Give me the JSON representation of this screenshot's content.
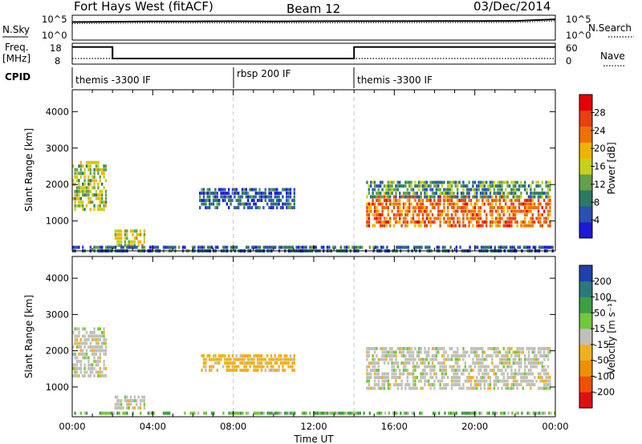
{
  "header": {
    "station": "Fort Hays West (fitACF)",
    "beam": "Beam 12",
    "date": "03/Dec/2014"
  },
  "top_panels": {
    "nsky_label": "N.Sky",
    "nsearch_label": "N.Search",
    "freq_label": "Freq.",
    "freq_unit": "[MHz]",
    "nave_label": "Nave",
    "cpid_label": "CPID",
    "nsky_ticks": [
      "10^5",
      "10^0"
    ],
    "nsearch_ticks": [
      "10^5",
      "10^0"
    ],
    "freq_ticks": [
      "18",
      "8"
    ],
    "nave_ticks": [
      "60",
      "0"
    ]
  },
  "cpid_segments": [
    {
      "label": "themis -3300 IF",
      "start": 0.0
    },
    {
      "label": "rbsp 200 IF",
      "start": 8.0
    },
    {
      "label": "themis -3300 IF",
      "start": 14.0
    }
  ],
  "time_axis": {
    "label": "Time UT",
    "ticks": [
      "00:00",
      "04:00",
      "08:00",
      "12:00",
      "16:00",
      "20:00",
      "00:00"
    ],
    "range_hours": [
      0,
      24
    ]
  },
  "power_colorbar": {
    "label": "Power [dB]",
    "ticks": [
      "28",
      "24",
      "20",
      "16",
      "12",
      "8",
      "4"
    ],
    "colors": [
      "#1a1ad6",
      "#2a50b4",
      "#2a7a64",
      "#62a04a",
      "#c8d018",
      "#f0b400",
      "#f07000",
      "#e84010",
      "#e80000"
    ]
  },
  "velocity_colorbar": {
    "label": "Velocity [m s⁻¹]",
    "ticks": [
      "200",
      "100",
      "50",
      "15",
      "-15",
      "-50",
      "-100",
      "-200"
    ],
    "colors": [
      "#2040b0",
      "#2a7a7a",
      "#3aa040",
      "#70c83a",
      "#c0c0b8",
      "#f0b020",
      "#f09000",
      "#f05000",
      "#e01010"
    ]
  },
  "chart_data": [
    {
      "type": "line",
      "title": "N.Sky / N.Search",
      "x": [
        0,
        2,
        4,
        6,
        8,
        10,
        12,
        14,
        16,
        18,
        20,
        22,
        24
      ],
      "series": [
        {
          "name": "N.Sky",
          "values": [
            5000,
            6000,
            7000,
            7000,
            7500,
            7000,
            7500,
            8000,
            8000,
            8500,
            8500,
            9000,
            20000
          ]
        }
      ],
      "ylim": [
        1,
        100000
      ],
      "yscale": "log"
    },
    {
      "type": "line",
      "title": "Freq. / Nave",
      "x": [
        0,
        2,
        2,
        14,
        14,
        24
      ],
      "series": [
        {
          "name": "Freq.",
          "values": [
            16.5,
            16.5,
            10.5,
            10.5,
            16.5,
            16.5
          ]
        },
        {
          "name": "Nave",
          "values": [
            15,
            15,
            15,
            15,
            15,
            15
          ]
        }
      ],
      "ylim": [
        8,
        18
      ]
    },
    {
      "type": "heatmap",
      "title": "Power",
      "xlabel": "Time UT",
      "ylabel": "Slant Range [km]",
      "xlim": [
        0,
        24
      ],
      "ylim": [
        180,
        4600
      ],
      "yticks": [
        1000,
        2000,
        3000,
        4000
      ],
      "regions": [
        {
          "t": [
            0.0,
            1.7
          ],
          "range": [
            1300,
            2650
          ],
          "power": 14
        },
        {
          "t": [
            2.1,
            3.6
          ],
          "range": [
            350,
            750
          ],
          "power": 16
        },
        {
          "t": [
            6.3,
            11.0
          ],
          "range": [
            1400,
            1900
          ],
          "power": 6
        },
        {
          "t": [
            14.6,
            23.7
          ],
          "range": [
            900,
            1700
          ],
          "power": 22
        },
        {
          "t": [
            14.6,
            23.7
          ],
          "range": [
            1700,
            2100
          ],
          "power": 10
        },
        {
          "t": [
            0.0,
            24.0
          ],
          "range": [
            200,
            300
          ],
          "power": 6
        }
      ]
    },
    {
      "type": "heatmap",
      "title": "Velocity",
      "xlabel": "Time UT",
      "ylabel": "Slant Range [km]",
      "xlim": [
        0,
        24
      ],
      "ylim": [
        180,
        4600
      ],
      "yticks": [
        1000,
        2000,
        3000,
        4000
      ],
      "regions": [
        {
          "t": [
            0.0,
            1.7
          ],
          "range": [
            1300,
            2650
          ],
          "velocity": 0
        },
        {
          "t": [
            2.1,
            3.6
          ],
          "range": [
            350,
            750
          ],
          "velocity": 0
        },
        {
          "t": [
            6.3,
            11.0
          ],
          "range": [
            1400,
            1900
          ],
          "velocity": -30
        },
        {
          "t": [
            14.6,
            23.7
          ],
          "range": [
            900,
            2100
          ],
          "velocity": 0
        },
        {
          "t": [
            0.0,
            24.0
          ],
          "range": [
            200,
            300
          ],
          "velocity": 30
        }
      ]
    }
  ]
}
